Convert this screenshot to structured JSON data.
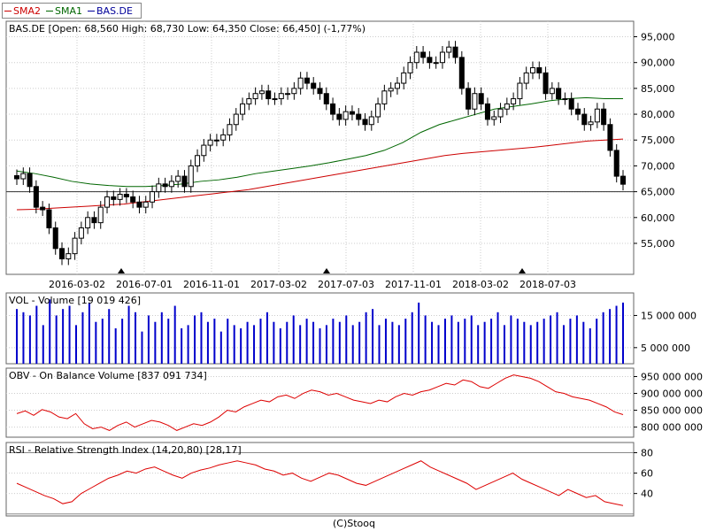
{
  "legend": [
    {
      "name": "SMA2",
      "color": "#cc0000"
    },
    {
      "name": "SMA1",
      "color": "#006600"
    },
    {
      "name": "BAS.DE",
      "color": "#000099"
    }
  ],
  "footer": "(C)Stooq",
  "chart_data": [
    {
      "type": "candlestick",
      "title": "BAS.DE [Open: 68,560  High: 68,730  Low: 64,350  Close: 66,450] (-1,77%)",
      "x_ticks": [
        "2016-03-02",
        "2016-07-01",
        "2016-11-01",
        "2017-03-02",
        "2017-07-03",
        "2017-11-01",
        "2018-03-02",
        "2018-07-03"
      ],
      "y_ticks": [
        "55,000",
        "60,000",
        "65,000",
        "70,000",
        "75,000",
        "80,000",
        "85,000",
        "90,000",
        "95,000"
      ],
      "ylim": [
        49000,
        98000
      ],
      "reference_line": 65000,
      "close_series": [
        67.5,
        68.5,
        66,
        62,
        61.5,
        58,
        54,
        52,
        53,
        56,
        58,
        60,
        59,
        62,
        64,
        63.5,
        64.5,
        64,
        63,
        62,
        63,
        65,
        66.5,
        66,
        67,
        68,
        66,
        70,
        72,
        74,
        75,
        75,
        76,
        78,
        80,
        82,
        83,
        84,
        84.5,
        83,
        83,
        84,
        84,
        85,
        87,
        86,
        85,
        84,
        82,
        80,
        79,
        80.5,
        80,
        79,
        78,
        79.5,
        82,
        84.5,
        85,
        86,
        88,
        90,
        92,
        91,
        90,
        90,
        92,
        93,
        91,
        85,
        81,
        84,
        82,
        79,
        79.5,
        81,
        82,
        83,
        86,
        88,
        89,
        88,
        84,
        85,
        83,
        83,
        81,
        80,
        78,
        78.5,
        81,
        78,
        73,
        68,
        66.45
      ],
      "sma1_series": [
        69,
        68.5,
        67.8,
        67,
        66.5,
        66.2,
        66,
        66,
        66.2,
        66.5,
        67,
        67.3,
        67.8,
        68.5,
        69,
        69.5,
        70,
        70.6,
        71.3,
        72,
        73,
        74.5,
        76.5,
        78,
        79,
        80,
        81,
        81.5,
        82,
        82.6,
        83,
        83.2,
        83,
        83
      ],
      "sma2_series": [
        61.5,
        61.6,
        61.8,
        62,
        62.2,
        62.4,
        62.6,
        63,
        63.4,
        63.8,
        64.2,
        64.6,
        65,
        65.4,
        66,
        66.6,
        67.2,
        67.8,
        68.4,
        69,
        69.6,
        70.2,
        70.8,
        71.4,
        72,
        72.4,
        72.7,
        73,
        73.3,
        73.6,
        74,
        74.4,
        74.8,
        75,
        75.2
      ]
    },
    {
      "type": "bar",
      "title": "VOL - Volume [19 019 426]",
      "y_ticks": [
        "5 000 000",
        "15 000 000"
      ],
      "ylim": [
        0,
        22000000
      ],
      "values": [
        17,
        16,
        15,
        18,
        12,
        20,
        15,
        17,
        18,
        12,
        16,
        19,
        13,
        14,
        17,
        11,
        14,
        18,
        16,
        10,
        15,
        13,
        16,
        14,
        18,
        11,
        12,
        15,
        16,
        13,
        14,
        10,
        14,
        12,
        11,
        13,
        12,
        14,
        16,
        13,
        11,
        13,
        15,
        12,
        14,
        13,
        11,
        12,
        14,
        13,
        15,
        12,
        13,
        16,
        17,
        12,
        14,
        13,
        12,
        14,
        16,
        19,
        15,
        13,
        12,
        14,
        15,
        13,
        14,
        15,
        12,
        13,
        14,
        16,
        12,
        15,
        14,
        13,
        12,
        13,
        14,
        15,
        16,
        12,
        14,
        15,
        13,
        11,
        14,
        16,
        17,
        18,
        19
      ]
    },
    {
      "type": "line",
      "title": "OBV - On Balance Volume [837 091 734]",
      "y_ticks": [
        "800 000 000",
        "850 000 000",
        "900 000 000",
        "950 000 000"
      ],
      "ylim": [
        770000000,
        975000000
      ],
      "values": [
        840,
        848,
        835,
        852,
        845,
        830,
        825,
        840,
        810,
        795,
        800,
        790,
        805,
        815,
        800,
        810,
        820,
        815,
        805,
        790,
        800,
        810,
        805,
        815,
        830,
        850,
        845,
        860,
        870,
        880,
        875,
        890,
        895,
        885,
        900,
        910,
        905,
        895,
        900,
        890,
        880,
        875,
        870,
        880,
        875,
        890,
        900,
        895,
        905,
        910,
        920,
        930,
        925,
        940,
        935,
        920,
        915,
        930,
        945,
        955,
        950,
        945,
        935,
        920,
        905,
        900,
        890,
        885,
        880,
        870,
        860,
        845,
        837
      ]
    },
    {
      "type": "line",
      "title": "RSI - Relative Strength Index (14,20,80) [28,17]",
      "y_ticks": [
        "40",
        "60",
        "80"
      ],
      "ylim": [
        18,
        90
      ],
      "upper_line": 80,
      "lower_line": 20,
      "values": [
        50,
        46,
        42,
        38,
        35,
        30,
        32,
        40,
        45,
        50,
        55,
        58,
        62,
        60,
        64,
        66,
        62,
        58,
        55,
        60,
        63,
        65,
        68,
        70,
        72,
        70,
        68,
        64,
        62,
        58,
        60,
        55,
        52,
        56,
        60,
        58,
        54,
        50,
        48,
        52,
        56,
        60,
        64,
        68,
        72,
        66,
        62,
        58,
        54,
        50,
        44,
        48,
        52,
        56,
        60,
        54,
        50,
        46,
        42,
        38,
        44,
        40,
        36,
        38,
        32,
        30,
        28.17
      ]
    }
  ]
}
